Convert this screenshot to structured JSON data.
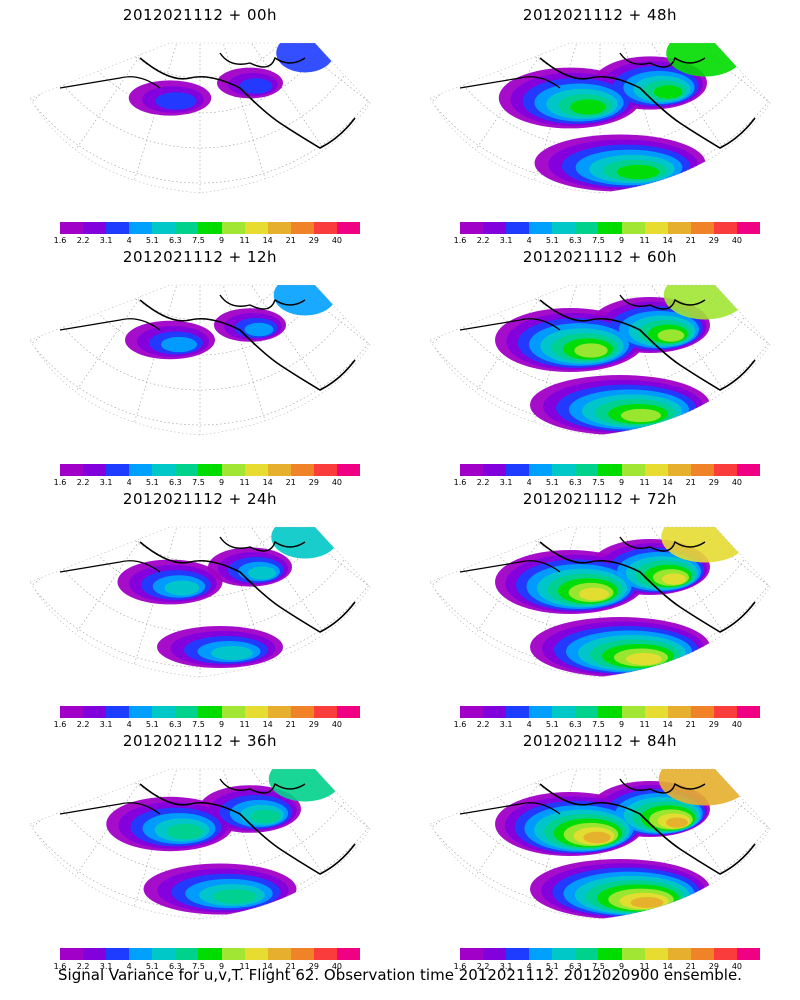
{
  "figure": {
    "caption": "Signal Variance for u,v,T. Flight 62. Observation time 2012021112. 2012020900 ensemble."
  },
  "panels": [
    {
      "title": "2012021112 + 00h",
      "intensity": 0.15,
      "extent": 0.55
    },
    {
      "title": "2012021112 + 48h",
      "intensity": 0.55,
      "extent": 0.95
    },
    {
      "title": "2012021112 + 12h",
      "intensity": 0.25,
      "extent": 0.6
    },
    {
      "title": "2012021112 + 60h",
      "intensity": 0.65,
      "extent": 1.0
    },
    {
      "title": "2012021112 + 24h",
      "intensity": 0.35,
      "extent": 0.7
    },
    {
      "title": "2012021112 + 72h",
      "intensity": 0.75,
      "extent": 1.0
    },
    {
      "title": "2012021112 + 36h",
      "intensity": 0.45,
      "extent": 0.85
    },
    {
      "title": "2012021112 + 84h",
      "intensity": 0.85,
      "extent": 1.0
    }
  ],
  "colorbar": {
    "labels": [
      "1.6",
      "2.2",
      "3.1",
      "4",
      "5.1",
      "6.3",
      "7.5",
      "9",
      "11",
      "14",
      "21",
      "29",
      "40"
    ],
    "colors": [
      "#a000c8",
      "#8200dc",
      "#1e3cff",
      "#00a0ff",
      "#00c8c8",
      "#00d28c",
      "#00dc00",
      "#a0e632",
      "#e6dc32",
      "#e6af2d",
      "#f08228",
      "#fa3c3c",
      "#f00082"
    ]
  }
}
